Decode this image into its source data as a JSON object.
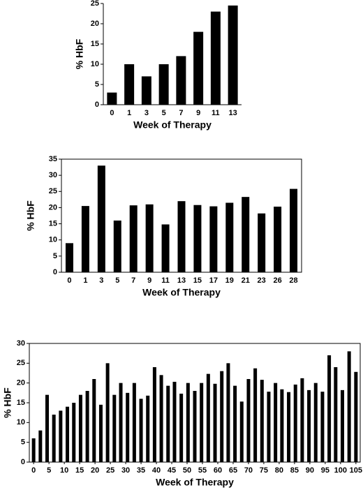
{
  "chart_data": [
    {
      "type": "bar",
      "categories": [
        "0",
        "1",
        "3",
        "5",
        "7",
        "9",
        "11",
        "13"
      ],
      "values": [
        3,
        10,
        7,
        10,
        12,
        18,
        23,
        24.5
      ],
      "color": "#000000",
      "ylim": [
        0,
        25
      ],
      "yticks": [
        0,
        5,
        10,
        15,
        20,
        25
      ],
      "xlabel": "Week of Therapy",
      "ylabel": "% HbF",
      "frame": false
    },
    {
      "type": "bar",
      "categories": [
        "0",
        "1",
        "3",
        "5",
        "7",
        "9",
        "11",
        "13",
        "15",
        "17",
        "19",
        "21",
        "23",
        "26",
        "28"
      ],
      "values": [
        9,
        20.5,
        33,
        16,
        20.7,
        21,
        14.8,
        22,
        20.8,
        20.4,
        21.5,
        23.3,
        18.2,
        20.3,
        25.8
      ],
      "color": "#000000",
      "ylim": [
        0,
        35
      ],
      "yticks": [
        0,
        5,
        10,
        15,
        20,
        25,
        30,
        35
      ],
      "xlabel": "Week of Therapy",
      "ylabel": "% HbF",
      "frame": true
    },
    {
      "type": "numeric-bar",
      "x": [
        0,
        2.2,
        4.4,
        6.6,
        8.8,
        11,
        13.1,
        15.3,
        17.5,
        19.7,
        21.9,
        24.1,
        26.3,
        28.4,
        30.6,
        32.8,
        35,
        37.2,
        39.4,
        41.6,
        43.8,
        45.9,
        48.1,
        50.3,
        52.5,
        54.7,
        56.9,
        59.1,
        61.3,
        63.4,
        65.6,
        67.8,
        70,
        72.2,
        74.4,
        76.6,
        78.8,
        80.9,
        83.1,
        85.3,
        87.5,
        89.7,
        91.9,
        94.1,
        96.3,
        98.4,
        100.6,
        102.8,
        105
      ],
      "values": [
        6,
        8,
        17,
        12,
        13,
        14,
        15,
        17,
        18,
        21,
        14.5,
        25,
        17,
        20,
        17.5,
        20,
        16,
        16.8,
        24,
        22,
        19.3,
        20.3,
        17.3,
        20,
        18,
        20,
        22.3,
        19.8,
        23,
        25,
        19.3,
        15.3,
        21,
        23.7,
        20.8,
        17.8,
        20,
        18.4,
        17.7,
        19.6,
        21.2,
        18.2,
        20,
        17.8,
        27,
        24,
        18.2,
        28,
        22.8
      ],
      "color": "#000000",
      "xlim": [
        -1.4,
        106.4
      ],
      "xticks": [
        0,
        5,
        10,
        15,
        20,
        25,
        30,
        35,
        40,
        45,
        50,
        55,
        60,
        65,
        70,
        75,
        80,
        85,
        90,
        95,
        100,
        105
      ],
      "ylim": [
        0,
        30
      ],
      "yticks": [
        0,
        5,
        10,
        15,
        20,
        25,
        30
      ],
      "xlabel": "Week of Therapy",
      "ylabel": "% HbF",
      "frame": true
    }
  ]
}
